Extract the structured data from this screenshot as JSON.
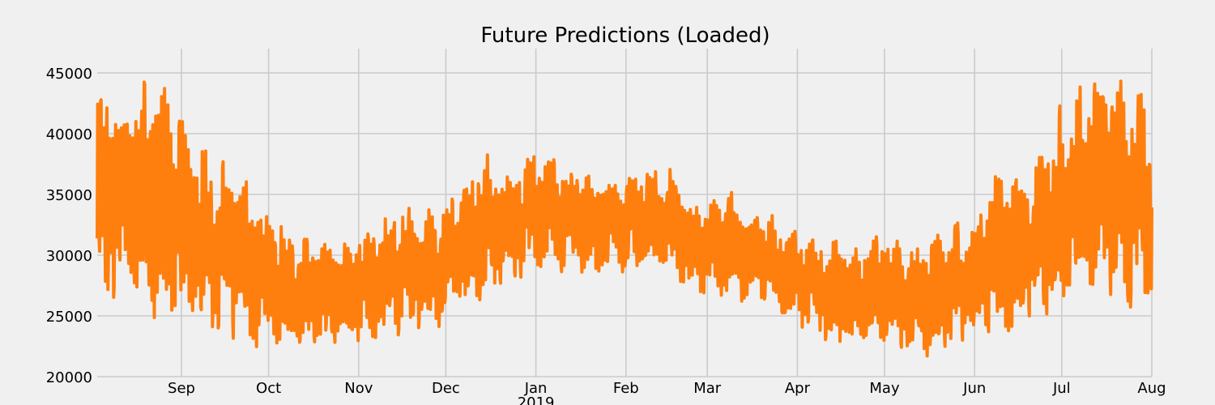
{
  "chart_data": {
    "type": "line",
    "title": "Future Predictions (Loaded)",
    "xlabel": "",
    "ylabel": "",
    "ylim": [
      20000,
      47000
    ],
    "yticks": [
      20000,
      25000,
      30000,
      35000,
      40000,
      45000
    ],
    "ytick_labels": [
      "20000",
      "25000",
      "30000",
      "35000",
      "40000",
      "45000"
    ],
    "xlim": [
      "2018-08-03",
      "2019-08-01"
    ],
    "xticks": [
      "2018-09-01",
      "2018-10-01",
      "2018-11-01",
      "2018-12-01",
      "2019-01-01",
      "2019-02-01",
      "2019-03-01",
      "2019-04-01",
      "2019-05-01",
      "2019-06-01",
      "2019-07-01",
      "2019-08-01"
    ],
    "xtick_labels": [
      "Sep",
      "Oct",
      "Nov",
      "Dec",
      "Jan",
      "Feb",
      "Mar",
      "Apr",
      "May",
      "Jun",
      "Jul",
      "Aug"
    ],
    "xtick_year_label": "2019",
    "grid": true,
    "series": [
      {
        "color": "#ff7f0e",
        "envelope": {
          "dates": [
            "2018-08-03",
            "2018-08-10",
            "2018-08-17",
            "2018-08-24",
            "2018-09-01",
            "2018-09-08",
            "2018-09-15",
            "2018-09-22",
            "2018-10-01",
            "2018-10-08",
            "2018-10-15",
            "2018-10-22",
            "2018-11-01",
            "2018-11-08",
            "2018-11-15",
            "2018-11-22",
            "2018-12-01",
            "2018-12-08",
            "2018-12-15",
            "2018-12-22",
            "2019-01-01",
            "2019-01-08",
            "2019-01-15",
            "2019-01-22",
            "2019-02-01",
            "2019-02-08",
            "2019-02-15",
            "2019-02-22",
            "2019-03-01",
            "2019-03-08",
            "2019-03-15",
            "2019-03-22",
            "2019-04-01",
            "2019-04-08",
            "2019-04-15",
            "2019-04-22",
            "2019-05-01",
            "2019-05-08",
            "2019-05-15",
            "2019-05-22",
            "2019-06-01",
            "2019-06-08",
            "2019-06-15",
            "2019-06-22",
            "2019-07-01",
            "2019-07-08",
            "2019-07-15",
            "2019-07-22",
            "2019-08-01"
          ],
          "high": [
            44500,
            43500,
            45000,
            45000,
            42500,
            39000,
            38000,
            37000,
            34500,
            32500,
            31500,
            31500,
            32500,
            33000,
            35000,
            34000,
            35000,
            36500,
            39500,
            37000,
            39500,
            38500,
            38000,
            36500,
            36500,
            37500,
            38000,
            35000,
            34500,
            35500,
            34000,
            33500,
            32500,
            32000,
            31500,
            31000,
            32500,
            31000,
            31000,
            32500,
            33500,
            37500,
            37000,
            38000,
            43000,
            45500,
            45500,
            45000,
            45000
          ],
          "low": [
            24000,
            26000,
            25500,
            24500,
            23500,
            23000,
            23000,
            22500,
            22000,
            22000,
            22000,
            22000,
            22500,
            22500,
            23000,
            23500,
            24000,
            25000,
            26000,
            27000,
            29000,
            28500,
            28000,
            28000,
            28500,
            28500,
            28000,
            27000,
            26500,
            26500,
            26000,
            25500,
            24000,
            23000,
            22000,
            22000,
            22000,
            21500,
            21500,
            22000,
            22500,
            22500,
            23000,
            24500,
            25000,
            26500,
            26000,
            25500,
            25000
          ]
        }
      }
    ]
  }
}
